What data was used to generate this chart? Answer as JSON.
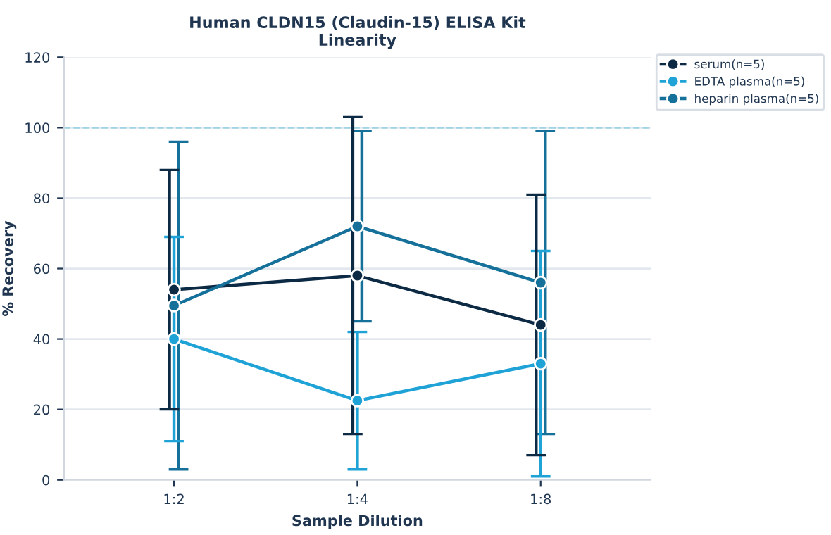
{
  "chart_data": {
    "type": "line",
    "title": "Human CLDN15 (Claudin-15) ELISA Kit\nLinearity",
    "xlabel": "Sample Dilution",
    "ylabel": "% Recovery",
    "categories": [
      "1:2",
      "1:4",
      "1:8"
    ],
    "series": [
      {
        "name": "serum(n=5)",
        "color": "#0d2a45",
        "values": [
          54,
          58,
          44
        ],
        "errors": [
          34,
          45,
          37
        ]
      },
      {
        "name": "EDTA plasma(n=5)",
        "color": "#1fa3d6",
        "values": [
          40,
          22.5,
          33
        ],
        "errors": [
          29,
          19.5,
          32
        ]
      },
      {
        "name": "heparin plasma(n=5)",
        "color": "#16719a",
        "values": [
          49.5,
          72,
          56
        ],
        "errors": [
          46.5,
          27,
          43
        ]
      }
    ],
    "ylim": [
      0,
      120
    ],
    "yticks": [
      0,
      20,
      40,
      60,
      80,
      100,
      120
    ],
    "grid": "y",
    "legend": "top right",
    "marker": "circle",
    "line_style": "solid",
    "ref_lines": [
      {
        "axis": "y",
        "value": 100,
        "color": "#9fd3e6",
        "line_style": "dashed"
      }
    ]
  }
}
